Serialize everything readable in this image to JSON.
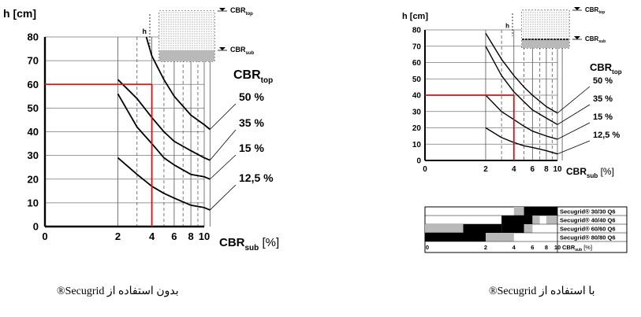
{
  "chart_data": [
    {
      "type": "line",
      "title": "",
      "ylabel": "h [cm]",
      "xlabel": "CBRsub [%]",
      "xlabel_main": "CBR",
      "xlabel_sub": "sub",
      "xlabel_unit": "[%]",
      "x_scale": "log",
      "xlim": [
        0,
        11
      ],
      "ylim": [
        0,
        80
      ],
      "xticks": [
        "0",
        "2",
        "4",
        "6",
        "8",
        "10"
      ],
      "xtick_values": [
        0,
        2,
        4,
        6,
        8,
        10
      ],
      "yticks": [
        0,
        10,
        20,
        30,
        40,
        50,
        60,
        70,
        80
      ],
      "legend_title_main": "CBR",
      "legend_title_sub": "top",
      "grid": true,
      "series": [
        {
          "name": "50 %",
          "x": [
            3.6,
            4,
            5,
            6,
            8,
            10,
            11
          ],
          "y": [
            80,
            72,
            62,
            55,
            47,
            43,
            41
          ]
        },
        {
          "name": "35 %",
          "x": [
            2,
            3,
            4,
            5,
            6,
            8,
            10,
            11
          ],
          "y": [
            62,
            54,
            46,
            40,
            36,
            32,
            29,
            28
          ]
        },
        {
          "name": "15 %",
          "x": [
            2,
            3,
            4,
            5,
            6,
            8,
            10,
            11
          ],
          "y": [
            56,
            42,
            35,
            29,
            26,
            22,
            21,
            20
          ]
        },
        {
          "name": "12,5 %",
          "x": [
            2,
            3,
            4,
            5,
            6,
            8,
            10,
            11
          ],
          "y": [
            29,
            22,
            17,
            14,
            12,
            9,
            8,
            7
          ]
        }
      ],
      "example": {
        "x": 4,
        "y": 60
      },
      "inset": {
        "label_top_main": "CBR",
        "label_top_sub": "top",
        "label_h": "h",
        "label_sub_main": "CBR",
        "label_sub_sub": "sub"
      }
    },
    {
      "type": "line",
      "title": "",
      "ylabel": "h [cm]",
      "xlabel": "CBRsub [%]",
      "xlabel_main": "CBR",
      "xlabel_sub": "sub",
      "xlabel_unit": "[%]",
      "x_scale": "log",
      "xlim": [
        0,
        11
      ],
      "ylim": [
        0,
        80
      ],
      "xticks": [
        "0",
        "2",
        "4",
        "6",
        "8",
        "10"
      ],
      "xtick_values": [
        0,
        2,
        4,
        6,
        8,
        10
      ],
      "yticks": [
        0,
        10,
        20,
        30,
        40,
        50,
        60,
        70,
        80
      ],
      "legend_title_main": "CBR",
      "legend_title_sub": "top",
      "grid": true,
      "series": [
        {
          "name": "50 %",
          "x": [
            2,
            3,
            4,
            5,
            6,
            8,
            10
          ],
          "y": [
            78,
            62,
            52,
            45,
            40,
            33,
            29
          ]
        },
        {
          "name": "35 %",
          "x": [
            2,
            3,
            4,
            5,
            6,
            8,
            10
          ],
          "y": [
            70,
            52,
            42,
            36,
            31,
            26,
            22
          ]
        },
        {
          "name": "15 %",
          "x": [
            2,
            3,
            4,
            5,
            6,
            8,
            10
          ],
          "y": [
            40,
            30,
            25,
            21,
            18,
            15,
            13
          ]
        },
        {
          "name": "12,5 %",
          "x": [
            2,
            3,
            4,
            5,
            6,
            8,
            10
          ],
          "y": [
            20,
            14,
            11,
            9,
            8,
            6,
            4
          ]
        }
      ],
      "example": {
        "x": 4,
        "y": 40
      },
      "inset": {
        "label_top_main": "CBR",
        "label_top_sub": "top",
        "label_h": "h",
        "label_sub_main": "CBR",
        "label_sub_sub": "sub"
      }
    }
  ],
  "secugrid_table": {
    "xticks": [
      "0",
      "2",
      "4",
      "6",
      "8",
      "10"
    ],
    "xlabel_main": "CBR",
    "xlabel_sub": "sub",
    "xlabel_unit": "[%]",
    "rows": [
      {
        "label": "Secugrid® 30/30 Q6",
        "grey": [
          [
            4,
            5
          ]
        ],
        "black": [
          [
            5,
            10
          ]
        ]
      },
      {
        "label": "Secugrid® 40/40 Q6",
        "grey": [
          [
            6,
            7
          ],
          [
            8,
            10
          ]
        ],
        "black": [
          [
            3,
            6
          ]
        ]
      },
      {
        "label": "Secugrid® 60/60 Q6",
        "grey": [
          [
            0,
            1
          ],
          [
            5,
            6
          ]
        ],
        "black": [
          [
            1,
            3
          ],
          [
            3,
            5
          ]
        ]
      },
      {
        "label": "Secugrid® 80/80 Q6",
        "grey": [
          [
            2,
            4
          ]
        ],
        "black": [
          [
            0,
            2
          ]
        ]
      }
    ]
  },
  "captions": {
    "left": "بدون استفاده از Secugrid®",
    "right": "با استفاده از Secugrid®"
  }
}
